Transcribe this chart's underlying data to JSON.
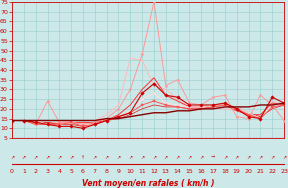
{
  "xlabel": "Vent moyen/en rafales ( km/h )",
  "xlim": [
    0,
    23
  ],
  "ylim": [
    5,
    75
  ],
  "yticks": [
    5,
    10,
    15,
    20,
    25,
    30,
    35,
    40,
    45,
    50,
    55,
    60,
    65,
    70,
    75
  ],
  "xticks": [
    0,
    1,
    2,
    3,
    4,
    5,
    6,
    7,
    8,
    9,
    10,
    11,
    12,
    13,
    14,
    15,
    16,
    17,
    18,
    19,
    20,
    21,
    22,
    23
  ],
  "bg_color": "#cce8e8",
  "grid_color_major": "#99cccc",
  "grid_color_minor": "#bbdddd",
  "series": [
    {
      "x": [
        0,
        1,
        2,
        3,
        4,
        5,
        6,
        7,
        8,
        9,
        10,
        11,
        12,
        13,
        14,
        15,
        16,
        17,
        18,
        19,
        20,
        21,
        22,
        23
      ],
      "y": [
        14,
        14,
        13,
        12,
        11,
        11,
        10,
        12,
        14,
        16,
        18,
        28,
        33,
        27,
        26,
        22,
        22,
        22,
        23,
        20,
        16,
        15,
        26,
        23
      ],
      "color": "#cc0000",
      "lw": 0.8,
      "marker": "D",
      "ms": 1.8,
      "zorder": 5
    },
    {
      "x": [
        0,
        1,
        2,
        3,
        4,
        5,
        6,
        7,
        8,
        9,
        10,
        11,
        12,
        13,
        14,
        15,
        16,
        17,
        18,
        19,
        20,
        21,
        22,
        23
      ],
      "y": [
        14,
        14,
        12,
        24,
        13,
        13,
        12,
        13,
        15,
        20,
        30,
        48,
        75,
        32,
        35,
        23,
        22,
        26,
        27,
        16,
        15,
        27,
        22,
        14
      ],
      "color": "#ff9999",
      "lw": 0.7,
      "marker": "o",
      "ms": 1.5,
      "zorder": 4
    },
    {
      "x": [
        0,
        1,
        2,
        3,
        4,
        5,
        6,
        7,
        8,
        9,
        10,
        11,
        12,
        13,
        14,
        15,
        16,
        17,
        18,
        19,
        20,
        21,
        22,
        23
      ],
      "y": [
        14,
        14,
        13,
        13,
        13,
        14,
        14,
        14,
        17,
        22,
        46,
        45,
        32,
        30,
        25,
        21,
        21,
        20,
        20,
        19,
        17,
        16,
        24,
        22
      ],
      "color": "#ffbbbb",
      "lw": 0.7,
      "marker": null,
      "ms": 0,
      "zorder": 3
    },
    {
      "x": [
        0,
        1,
        2,
        3,
        4,
        5,
        6,
        7,
        8,
        9,
        10,
        11,
        12,
        13,
        14,
        15,
        16,
        17,
        18,
        19,
        20,
        21,
        22,
        23
      ],
      "y": [
        14,
        14,
        12,
        12,
        12,
        13,
        11,
        12,
        14,
        16,
        18,
        22,
        24,
        22,
        21,
        20,
        20,
        21,
        22,
        20,
        17,
        15,
        21,
        22
      ],
      "color": "#ff5555",
      "lw": 0.7,
      "marker": "s",
      "ms": 1.5,
      "zorder": 4
    },
    {
      "x": [
        0,
        1,
        2,
        3,
        4,
        5,
        6,
        7,
        8,
        9,
        10,
        11,
        12,
        13,
        14,
        15,
        16,
        17,
        18,
        19,
        20,
        21,
        22,
        23
      ],
      "y": [
        14,
        14,
        14,
        14,
        14,
        14,
        14,
        14,
        15,
        15,
        16,
        17,
        18,
        18,
        19,
        19,
        20,
        20,
        21,
        21,
        21,
        22,
        22,
        23
      ],
      "color": "#880000",
      "lw": 1.0,
      "marker": null,
      "ms": 0,
      "zorder": 6
    },
    {
      "x": [
        0,
        1,
        2,
        3,
        4,
        5,
        6,
        7,
        8,
        9,
        10,
        11,
        12,
        13,
        14,
        15,
        16,
        17,
        18,
        19,
        20,
        21,
        22,
        23
      ],
      "y": [
        14,
        14,
        13,
        13,
        12,
        13,
        13,
        13,
        14,
        17,
        22,
        30,
        36,
        27,
        24,
        21,
        21,
        22,
        22,
        19,
        17,
        17,
        23,
        22
      ],
      "color": "#ff3333",
      "lw": 0.7,
      "marker": null,
      "ms": 0,
      "zorder": 3
    },
    {
      "x": [
        0,
        1,
        2,
        3,
        4,
        5,
        6,
        7,
        8,
        9,
        10,
        11,
        12,
        13,
        14,
        15,
        16,
        17,
        18,
        19,
        20,
        21,
        22,
        23
      ],
      "y": [
        14,
        14,
        13,
        13,
        12,
        12,
        11,
        13,
        14,
        15,
        17,
        20,
        22,
        21,
        21,
        20,
        20,
        21,
        22,
        21,
        18,
        16,
        20,
        22
      ],
      "color": "#dd3333",
      "lw": 0.6,
      "marker": null,
      "ms": 0,
      "zorder": 3
    },
    {
      "x": [
        0,
        1,
        2,
        3,
        4,
        5,
        6,
        7,
        8,
        9,
        10,
        11,
        12,
        13,
        14,
        15,
        16,
        17,
        18,
        19,
        20,
        21,
        22,
        23
      ],
      "y": [
        14,
        14,
        14,
        12,
        12,
        13,
        12,
        12,
        14,
        16,
        19,
        25,
        28,
        23,
        22,
        21,
        21,
        22,
        22,
        21,
        18,
        15,
        22,
        23
      ],
      "color": "#ffdddd",
      "lw": 0.7,
      "marker": "P",
      "ms": 1.8,
      "zorder": 3
    }
  ],
  "xlabel_color": "#cc0000",
  "tick_color": "#cc0000",
  "axis_color": "#cc0000",
  "arrows": [
    "↗",
    "↗",
    "↗",
    "↗",
    "↗",
    "↗",
    "↑",
    "↗",
    "↗",
    "↗",
    "↗",
    "↗",
    "↗",
    "↗",
    "↗",
    "↗",
    "↗",
    "→",
    "↗",
    "↗",
    "↗",
    "↗",
    "↗",
    "↗"
  ]
}
